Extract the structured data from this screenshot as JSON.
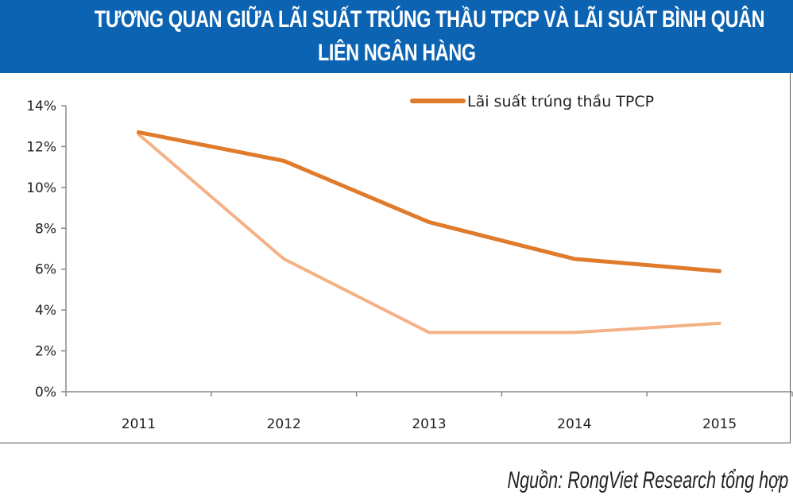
{
  "title_line1": "TƯƠNG QUAN GIỮA LÃI SUẤT TRÚNG THẦU TPCP VÀ LÃI SUẤT BÌNH QUÂN",
  "title_line2": "LIÊN NGÂN HÀNG",
  "source": "Nguồn: RongViet Research tổng hợp",
  "chart_data": {
    "type": "line",
    "title": "TƯƠNG QUAN GIỮA LÃI SUẤT TRÚNG THẦU TPCP VÀ LÃI SUẤT BÌNH QUÂN LIÊN NGÂN HÀNG",
    "categories": [
      "2011",
      "2012",
      "2013",
      "2014",
      "2015"
    ],
    "ylim": [
      0,
      14
    ],
    "yticks": [
      "0%",
      "2%",
      "4%",
      "6%",
      "8%",
      "10%",
      "12%",
      "14%"
    ],
    "grid": false,
    "legend": "top-right",
    "series": [
      {
        "name": "Lãi suất trúng thầu TPCP",
        "color": "#e07b2c",
        "values": [
          12.7,
          11.3,
          8.3,
          6.5,
          5.9
        ]
      },
      {
        "color": "#f4b186",
        "values": [
          12.6,
          6.5,
          2.9,
          2.9,
          3.35
        ]
      }
    ]
  }
}
